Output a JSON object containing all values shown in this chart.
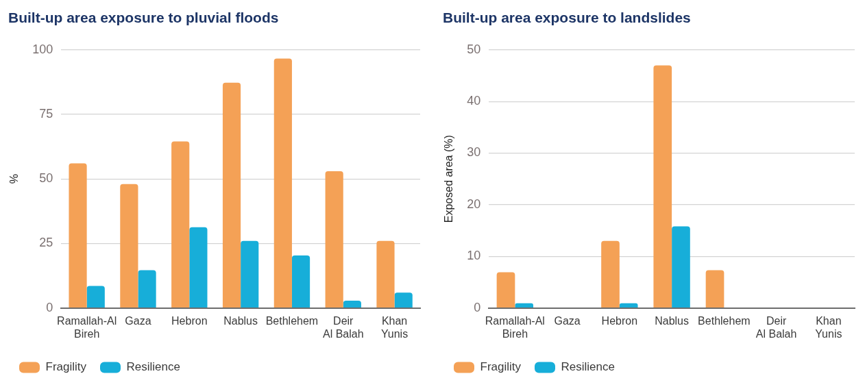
{
  "chart_data": [
    {
      "type": "bar",
      "title": "Built-up area exposure to pluvial floods",
      "ylabel": "%",
      "categories": [
        "Ramallah-Al Bireh",
        "Gaza",
        "Hebron",
        "Nablus",
        "Bethlehem",
        "Deir Al Balah",
        "Khan Yunis"
      ],
      "series": [
        {
          "name": "Fragility",
          "color": "#f4a156",
          "values": [
            56,
            48,
            64.5,
            87.3,
            96.6,
            53,
            26
          ]
        },
        {
          "name": "Resilience",
          "color": "#17aed9",
          "values": [
            8.5,
            14.6,
            31.3,
            26,
            20.3,
            2.8,
            5.9
          ]
        }
      ],
      "ylim": [
        0,
        100
      ],
      "yticks": [
        0,
        25,
        50,
        75,
        100
      ],
      "grid": "y",
      "legend": "bottom left"
    },
    {
      "type": "bar",
      "title": "Built-up area exposure to landslides",
      "ylabel": "Exposed area (%)",
      "categories": [
        "Ramallah-Al Bireh",
        "Gaza",
        "Hebron",
        "Nablus",
        "Bethlehem",
        "Deir Al Balah",
        "Khan Yunis"
      ],
      "series": [
        {
          "name": "Fragility",
          "color": "#f4a156",
          "values": [
            6.9,
            0,
            13,
            47,
            7.3,
            0,
            0
          ]
        },
        {
          "name": "Resilience",
          "color": "#17aed9",
          "values": [
            0.9,
            0,
            0.9,
            15.8,
            0,
            0,
            0
          ]
        }
      ],
      "ylim": [
        0,
        50
      ],
      "yticks": [
        0,
        10,
        20,
        30,
        40,
        50
      ],
      "grid": "y",
      "legend": "bottom left"
    }
  ]
}
